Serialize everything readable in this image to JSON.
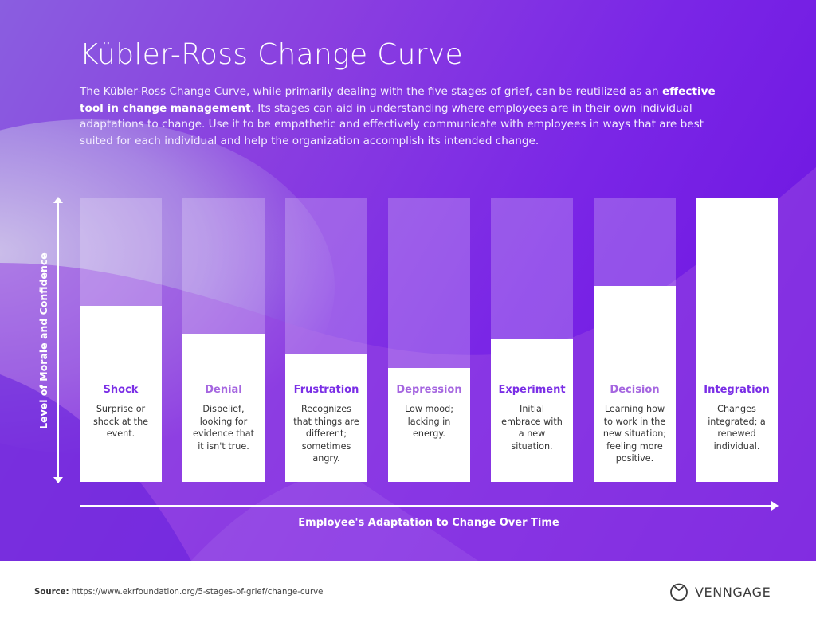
{
  "header": {
    "title": "Kübler-Ross Change Curve",
    "intro_part1": "The Kübler-Ross Change Curve, while primarily dealing with the five stages of grief, can be reutilized as an ",
    "intro_bold": "effective tool in change management",
    "intro_part2": ". Its stages can aid in understanding where employees are in their own individual adaptations to change. Use it to be empathetic and effectively communicate with employees in ways that are best suited for each individual and help the organization accomplish its intended change."
  },
  "colors": {
    "title_dark": "#7a2ee6",
    "title_light": "#a566e0",
    "background_start": "#8a5ee0",
    "background_end": "#6a0fe0"
  },
  "chart_data": {
    "type": "bar",
    "title": "Kübler-Ross Change Curve",
    "xlabel": "Employee's Adaptation to Change Over Time",
    "ylabel": "Level of Morale and Confidence",
    "categories": [
      "Shock",
      "Denial",
      "Frustration",
      "Depression",
      "Experiment",
      "Decision",
      "Integration"
    ],
    "values": [
      62,
      52,
      45,
      40,
      50,
      69,
      100
    ],
    "ylim": [
      0,
      100
    ],
    "grid": false,
    "legend": "none",
    "descriptions": [
      "Surprise or shock at the event.",
      "Disbelief, looking for evidence that it isn't true.",
      "Recognizes that things are different; sometimes angry.",
      "Low mood; lacking in energy.",
      "Initial embrace with a new situation.",
      "Learning how to work in the new situation; feeling more positive.",
      "Changes integrated; a renewed individual."
    ]
  },
  "stages": [
    {
      "name": "Shock",
      "desc": "Surprise or shock at the event.",
      "value": 62,
      "tone": "dark"
    },
    {
      "name": "Denial",
      "desc": "Disbelief, looking for evidence that it isn't true.",
      "value": 52,
      "tone": "light"
    },
    {
      "name": "Frustration",
      "desc": "Recognizes that things are different; sometimes angry.",
      "value": 45,
      "tone": "dark"
    },
    {
      "name": "Depression",
      "desc": "Low mood; lacking in energy.",
      "value": 40,
      "tone": "light"
    },
    {
      "name": "Experiment",
      "desc": "Initial embrace with a new situation.",
      "value": 50,
      "tone": "dark"
    },
    {
      "name": "Decision",
      "desc": "Learning how to work in the new situation; feeling more positive.",
      "value": 69,
      "tone": "light"
    },
    {
      "name": "Integration",
      "desc": "Changes integrated; a renewed individual.",
      "value": 100,
      "tone": "dark"
    }
  ],
  "axes": {
    "y_label": "Level of Morale and Confidence",
    "x_label": "Employee's Adaptation to Change Over Time"
  },
  "footer": {
    "source_label": "Source:",
    "source_url": "https://www.ekrfoundation.org/5-stages-of-grief/change-curve",
    "brand": "VENNGAGE",
    "brand_icon": "venngage-logo-icon"
  }
}
